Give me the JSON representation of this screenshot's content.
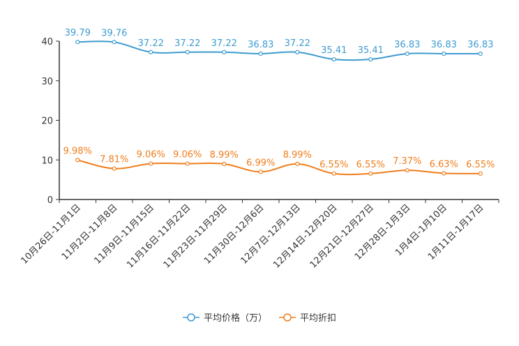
{
  "chart_data": {
    "type": "line",
    "categories": [
      "10月26日-11月1日",
      "11月2日-11月8日",
      "11月9日-11月15日",
      "11月16日-11月22日",
      "11月23日-11月29日",
      "11月30日-12月6日",
      "12月7日-12月13日",
      "12月14日-12月20日",
      "12月21日-12月27日",
      "12月28日-1月3日",
      "1月4日-1月10日",
      "1月11日-1月17日"
    ],
    "series": [
      {
        "name": "平均价格（万）",
        "color": "#3d9bd0",
        "values": [
          39.79,
          39.76,
          37.22,
          37.22,
          37.22,
          36.83,
          37.22,
          35.41,
          35.41,
          36.83,
          36.83,
          36.83
        ],
        "labels": [
          "39.79",
          "39.76",
          "37.22",
          "37.22",
          "37.22",
          "36.83",
          "37.22",
          "35.41",
          "35.41",
          "36.83",
          "36.83",
          "36.83"
        ]
      },
      {
        "name": "平均折扣",
        "color": "#f07d1a",
        "values": [
          9.98,
          7.81,
          9.06,
          9.06,
          8.99,
          6.99,
          8.99,
          6.55,
          6.55,
          7.37,
          6.63,
          6.55
        ],
        "labels": [
          "9.98%",
          "7.81%",
          "9.06%",
          "9.06%",
          "8.99%",
          "6.99%",
          "8.99%",
          "6.55%",
          "6.55%",
          "7.37%",
          "6.63%",
          "6.55%"
        ]
      }
    ],
    "ylim": [
      0,
      40
    ],
    "yticks": [
      0,
      10,
      20,
      30,
      40
    ],
    "ytick_labels": [
      "0",
      "10",
      "20",
      "30",
      "40"
    ],
    "title": "",
    "xlabel": "",
    "ylabel": "",
    "grid": false,
    "legend": "bottom-center"
  }
}
